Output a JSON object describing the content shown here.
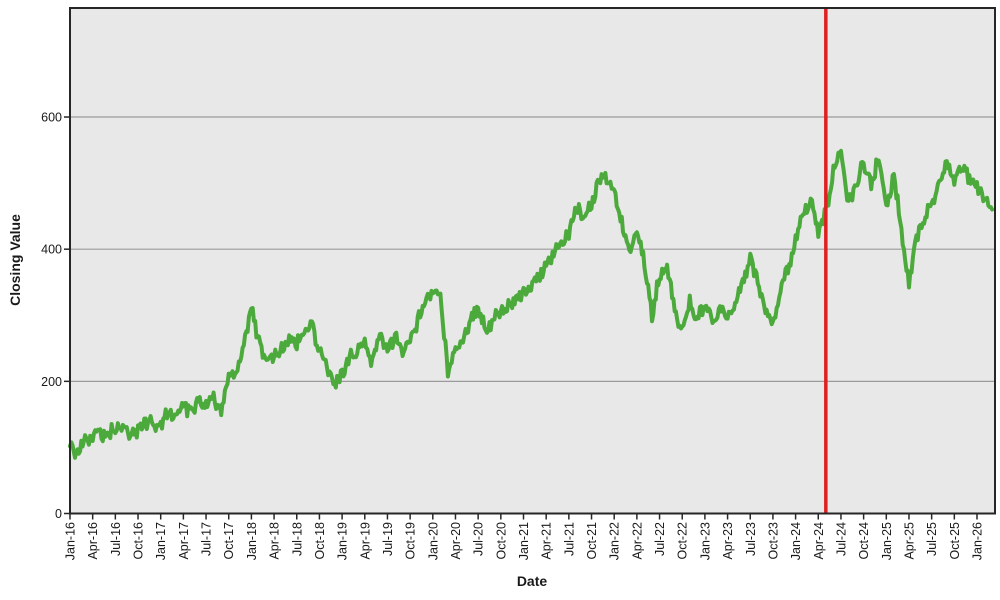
{
  "figure": {
    "y_axis_title": "Closing Value",
    "x_axis_title": "Date"
  },
  "chart_data": {
    "type": "line",
    "title": "",
    "xlabel": "Date",
    "ylabel": "Closing Value",
    "legend": "none",
    "grid": "horizontal",
    "plot_bg_color": "#e8e8e8",
    "grid_color": "#9b9b9b",
    "frame_color": "#262626",
    "ylim": [
      0,
      765
    ],
    "y_gridlines": [
      200,
      400,
      600
    ],
    "y_tick_labels": [
      "0",
      "200",
      "400",
      "600"
    ],
    "x_tick_labels": [
      "Jan-16",
      "Apr-16",
      "Jul-16",
      "Oct-16",
      "Jan-17",
      "Apr-17",
      "Jul-17",
      "Oct-17",
      "Jan-18",
      "Apr-18",
      "Jul-18",
      "Oct-18",
      "Jan-19",
      "Apr-19",
      "Jul-19",
      "Oct-19",
      "Jan-20",
      "Apr-20",
      "Jul-20",
      "Oct-20",
      "Jan-21",
      "Apr-21",
      "Jul-21",
      "Oct-21",
      "Jan-22",
      "Apr-22",
      "Jul-22",
      "Oct-22",
      "Jan-23",
      "Apr-23",
      "Jul-23",
      "Oct-23",
      "Jan-24",
      "Apr-24",
      "Jul-24",
      "Oct-24",
      "Jan-25",
      "Apr-25",
      "Jul-25",
      "Oct-25",
      "Jan-26"
    ],
    "x_tick_every_months": 3,
    "x_start": "Jan-16",
    "x_end": "Mar-26",
    "series": [
      {
        "name": "Closing Value",
        "color": "#4caa3c",
        "sampling": "monthly_estimates_of_daily_series",
        "monthly_values": [
          100,
          92,
          110,
          118,
          123,
          116,
          133,
          130,
          120,
          126,
          140,
          134,
          132,
          158,
          146,
          165,
          152,
          170,
          170,
          176,
          158,
          203,
          218,
          252,
          308,
          262,
          225,
          240,
          250,
          262,
          258,
          276,
          285,
          245,
          222,
          192,
          208,
          235,
          242,
          266,
          228,
          268,
          248,
          268,
          238,
          258,
          292,
          322,
          332,
          335,
          214,
          248,
          264,
          290,
          318,
          272,
          295,
          303,
          312,
          324,
          338,
          348,
          362,
          375,
          390,
          408,
          425,
          468,
          440,
          468,
          502,
          505,
          490,
          445,
          400,
          435,
          380,
          298,
          362,
          372,
          310,
          278,
          320,
          292,
          322,
          292,
          305,
          300,
          315,
          350,
          388,
          350,
          312,
          288,
          335,
          372,
          415,
          452,
          472,
          428,
          458,
          515,
          555,
          470,
          500,
          528,
          498,
          540,
          465,
          512,
          430,
          342,
          418,
          448,
          470,
          500,
          532,
          502,
          528,
          505,
          498,
          472,
          460
        ]
      }
    ],
    "reference_line": {
      "axis": "x",
      "position_label": "May-24",
      "month_index": 100,
      "color": "#e02020"
    }
  }
}
